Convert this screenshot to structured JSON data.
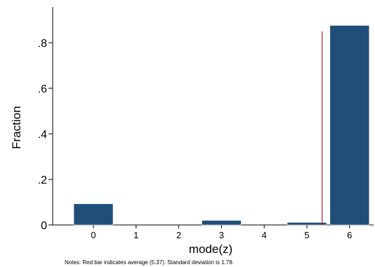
{
  "chart_data": {
    "type": "bar",
    "categories": [
      "0",
      "1",
      "2",
      "3",
      "4",
      "5",
      "6"
    ],
    "values": [
      0.093,
      0,
      0,
      0.02,
      0,
      0.011,
      0.876
    ],
    "xlabel": "mode(z)",
    "ylabel": "Fraction",
    "ylim": [
      0,
      0.9
    ],
    "y_ticks": [
      {
        "value": 0,
        "label": "0"
      },
      {
        "value": 0.2,
        "label": ".2"
      },
      {
        "value": 0.4,
        "label": ".4"
      },
      {
        "value": 0.6,
        "label": ".6"
      },
      {
        "value": 0.8,
        "label": ".8"
      }
    ],
    "average_line": {
      "x": 5.37,
      "top": 0.85,
      "color": "#b22234"
    },
    "note": "Notes: Red bar indicates average (5.37). Standard deviation is 1.78.",
    "bar_color": "#1f4e79",
    "grid": false
  }
}
